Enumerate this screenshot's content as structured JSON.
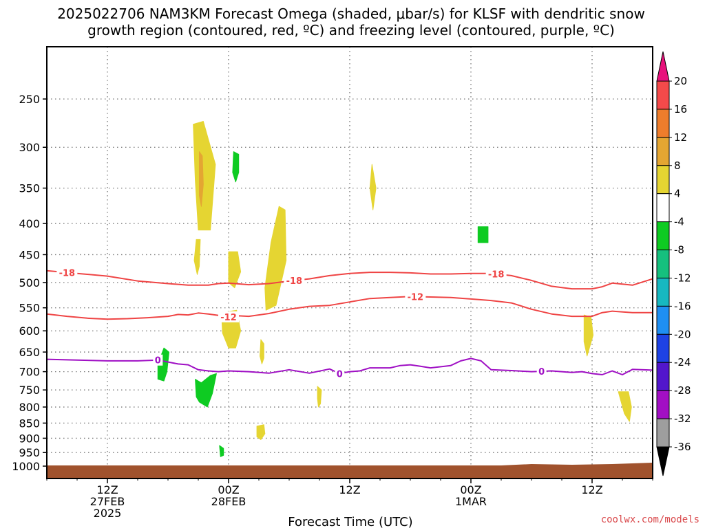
{
  "title_line1": "2025022706 NAM3KM Forecast Omega (shaded, μbar/s) for KLSF with dendritic snow",
  "title_line2": "growth region (contoured, red, ºC) and freezing level (contoured, purple, ºC)",
  "credit": "coolwx.com/models",
  "chart_data": {
    "type": "heatmap",
    "title": "2025022706 NAM3KM Forecast Omega (shaded, μbar/s) for KLSF with dendritic snow growth region (contoured, red, ºC) and freezing level (contoured, purple, ºC)",
    "xlabel": "Forecast Time (UTC)",
    "ylabel": "",
    "x_unit": "forecast hour from 2025-02-27 06Z",
    "x_range": [
      0,
      60
    ],
    "y_unit": "hPa",
    "y_range": [
      1000,
      200
    ],
    "y_scale": "log-pressure",
    "y_ticks": [
      250,
      300,
      350,
      400,
      450,
      500,
      550,
      600,
      650,
      700,
      750,
      800,
      850,
      900,
      950,
      1000
    ],
    "x_ticks": [
      {
        "hour": 6,
        "lines": [
          "12Z",
          "27FEB",
          "2025"
        ]
      },
      {
        "hour": 18,
        "lines": [
          "00Z",
          "28FEB"
        ]
      },
      {
        "hour": 30,
        "lines": [
          "12Z"
        ]
      },
      {
        "hour": 42,
        "lines": [
          "00Z",
          "1MAR"
        ]
      },
      {
        "hour": 54,
        "lines": [
          "12Z"
        ]
      }
    ],
    "grid": true,
    "colorbar": {
      "position": "right",
      "labels": [
        "20",
        "16",
        "12",
        "8",
        "4",
        "-4",
        "-8",
        "-12",
        "-16",
        "-20",
        "-24",
        "-28",
        "-32",
        "-36"
      ],
      "bins": [
        {
          "lo": 16,
          "hi": 20,
          "color": "#f44a4a"
        },
        {
          "lo": 12,
          "hi": 16,
          "color": "#ee7d2c"
        },
        {
          "lo": 8,
          "hi": 12,
          "color": "#e4a632"
        },
        {
          "lo": 4,
          "hi": 8,
          "color": "#e5d532"
        },
        {
          "lo": -4,
          "hi": 4,
          "color": "#ffffff"
        },
        {
          "lo": -8,
          "hi": -4,
          "color": "#0ecb22"
        },
        {
          "lo": -12,
          "hi": -8,
          "color": "#16c07e"
        },
        {
          "lo": -16,
          "hi": -12,
          "color": "#17b8c0"
        },
        {
          "lo": -20,
          "hi": -16,
          "color": "#1f8ff2"
        },
        {
          "lo": -24,
          "hi": -20,
          "color": "#1e42e4"
        },
        {
          "lo": -28,
          "hi": -24,
          "color": "#5216cc"
        },
        {
          "lo": -32,
          "hi": -28,
          "color": "#a20fc4"
        },
        {
          "lo": -36,
          "hi": -32,
          "color": "#9e9e9e"
        }
      ],
      "top_color": "#e8127c",
      "bottom_color": "#000000"
    },
    "ground_color": "#a0522d",
    "omega_regions": [
      {
        "name": "upper-yellow",
        "color": "#e5d532",
        "pts": [
          [
            14.5,
            275
          ],
          [
            15.5,
            272
          ],
          [
            16.7,
            320
          ],
          [
            16.2,
            410
          ],
          [
            15.0,
            410
          ],
          [
            14.7,
            340
          ]
        ]
      },
      {
        "name": "upper-orange",
        "color": "#e4a632",
        "pts": [
          [
            15.1,
            305
          ],
          [
            15.4,
            310
          ],
          [
            15.5,
            345
          ],
          [
            15.3,
            375
          ],
          [
            15.1,
            360
          ]
        ]
      },
      {
        "name": "upper-green",
        "color": "#0ecb22",
        "pts": [
          [
            18.5,
            305
          ],
          [
            19.0,
            308
          ],
          [
            19.0,
            330
          ],
          [
            18.7,
            342
          ],
          [
            18.4,
            330
          ]
        ]
      },
      {
        "name": "left-yellow",
        "color": "#e5d532",
        "pts": [
          [
            14.8,
            425
          ],
          [
            15.2,
            425
          ],
          [
            15.1,
            470
          ],
          [
            14.9,
            485
          ],
          [
            14.6,
            460
          ]
        ]
      },
      {
        "name": "mid-yellow-small",
        "color": "#e5d532",
        "pts": [
          [
            18.0,
            445
          ],
          [
            18.9,
            445
          ],
          [
            19.2,
            480
          ],
          [
            18.6,
            510
          ],
          [
            18.0,
            500
          ]
        ]
      },
      {
        "name": "tall-yellow",
        "color": "#e5d532",
        "pts": [
          [
            23.0,
            375
          ],
          [
            23.6,
            380
          ],
          [
            23.7,
            460
          ],
          [
            22.7,
            545
          ],
          [
            21.7,
            555
          ],
          [
            21.6,
            510
          ],
          [
            22.2,
            430
          ]
        ]
      },
      {
        "name": "upper-right-yellow",
        "color": "#e5d532",
        "pts": [
          [
            32.2,
            320
          ],
          [
            32.6,
            350
          ],
          [
            32.3,
            380
          ],
          [
            32.0,
            350
          ]
        ]
      },
      {
        "name": "right-green",
        "color": "#0ecb22",
        "pts": [
          [
            42.7,
            405
          ],
          [
            43.7,
            405
          ],
          [
            43.7,
            430
          ],
          [
            42.7,
            430
          ]
        ]
      },
      {
        "name": "yellow-600",
        "color": "#e5d532",
        "pts": [
          [
            17.3,
            560
          ],
          [
            18.8,
            555
          ],
          [
            19.2,
            600
          ],
          [
            18.7,
            640
          ],
          [
            18.0,
            640
          ],
          [
            17.4,
            605
          ]
        ]
      },
      {
        "name": "right-yellow-600",
        "color": "#e5d532",
        "pts": [
          [
            53.2,
            565
          ],
          [
            53.9,
            570
          ],
          [
            54.1,
            610
          ],
          [
            53.5,
            660
          ],
          [
            53.2,
            625
          ]
        ]
      },
      {
        "name": "yellow-650",
        "color": "#e5d532",
        "pts": [
          [
            21.2,
            620
          ],
          [
            21.5,
            630
          ],
          [
            21.5,
            665
          ],
          [
            21.3,
            680
          ],
          [
            21.1,
            660
          ]
        ]
      },
      {
        "name": "green-700-left",
        "color": "#0ecb22",
        "pts": [
          [
            11.0,
            680
          ],
          [
            11.6,
            640
          ],
          [
            12.1,
            650
          ],
          [
            11.9,
            700
          ],
          [
            11.6,
            725
          ],
          [
            11.0,
            720
          ]
        ]
      },
      {
        "name": "green-750",
        "color": "#0ecb22",
        "pts": [
          [
            14.7,
            720
          ],
          [
            15.3,
            730
          ],
          [
            16.2,
            710
          ],
          [
            16.8,
            705
          ],
          [
            16.4,
            760
          ],
          [
            15.9,
            800
          ],
          [
            15.1,
            785
          ],
          [
            14.8,
            770
          ]
        ]
      },
      {
        "name": "yellow-780",
        "color": "#e5d532",
        "pts": [
          [
            26.8,
            740
          ],
          [
            27.2,
            750
          ],
          [
            27.1,
            790
          ],
          [
            26.9,
            800
          ],
          [
            26.8,
            775
          ]
        ]
      },
      {
        "name": "yellow-800-right",
        "color": "#e5d532",
        "pts": [
          [
            56.6,
            755
          ],
          [
            57.6,
            755
          ],
          [
            57.9,
            800
          ],
          [
            57.7,
            845
          ],
          [
            57.2,
            820
          ]
        ]
      },
      {
        "name": "yellow-880",
        "color": "#e5d532",
        "pts": [
          [
            20.8,
            860
          ],
          [
            21.5,
            855
          ],
          [
            21.6,
            885
          ],
          [
            21.2,
            905
          ],
          [
            20.8,
            895
          ]
        ]
      },
      {
        "name": "green-950",
        "color": "#0ecb22",
        "pts": [
          [
            17.1,
            925
          ],
          [
            17.5,
            935
          ],
          [
            17.5,
            960
          ],
          [
            17.2,
            965
          ]
        ]
      }
    ],
    "contours": [
      {
        "name": "-18",
        "color": "#ef4444",
        "labels_at_hours": [
          2,
          24.5,
          44.5
        ],
        "x": [
          0,
          3,
          6,
          9,
          12,
          14,
          16,
          17,
          18,
          20,
          22,
          24,
          26,
          28,
          30,
          32,
          34,
          36,
          38,
          40,
          42,
          44,
          46,
          48,
          50,
          52,
          54,
          55,
          56,
          58,
          60
        ],
        "y": [
          478,
          483,
          488,
          497,
          502,
          505,
          505,
          502,
          501,
          504,
          502,
          497,
          493,
          487,
          483,
          481,
          481,
          482,
          484,
          484,
          483,
          483,
          487,
          496,
          507,
          512,
          512,
          508,
          501,
          505,
          493
        ]
      },
      {
        "name": "-12",
        "color": "#ef4444",
        "labels_at_hours": [
          18,
          36.5
        ],
        "x": [
          0,
          2,
          4,
          6,
          8,
          10,
          12,
          13,
          14,
          15,
          16,
          17,
          18,
          19,
          20,
          22,
          24,
          26,
          28,
          30,
          32,
          34,
          36,
          38,
          40,
          42,
          44,
          46,
          48,
          50,
          52,
          54,
          55,
          56,
          58,
          60
        ],
        "y": [
          563,
          568,
          572,
          574,
          573,
          571,
          568,
          564,
          565,
          561,
          563,
          566,
          569,
          567,
          568,
          562,
          553,
          547,
          545,
          538,
          531,
          529,
          527,
          528,
          529,
          532,
          535,
          540,
          553,
          563,
          568,
          568,
          560,
          557,
          560,
          560
        ]
      },
      {
        "name": "0",
        "color": "#9f0fc4",
        "labels_at_hours": [
          11,
          29,
          49
        ],
        "x": [
          0,
          3,
          6,
          9,
          11,
          13,
          14,
          15,
          16,
          17,
          18,
          20,
          22,
          24,
          26,
          28,
          29,
          30,
          31,
          32,
          34,
          35,
          36,
          37,
          38,
          40,
          41,
          42,
          43,
          44,
          46,
          48,
          50,
          52,
          53,
          54,
          55,
          56,
          57,
          58,
          60
        ],
        "y": [
          668,
          670,
          672,
          672,
          670,
          680,
          682,
          695,
          698,
          700,
          698,
          700,
          704,
          695,
          704,
          693,
          705,
          700,
          698,
          690,
          690,
          684,
          682,
          686,
          690,
          684,
          672,
          666,
          672,
          695,
          697,
          700,
          698,
          702,
          700,
          705,
          708,
          698,
          708,
          694,
          696
        ]
      }
    ]
  }
}
